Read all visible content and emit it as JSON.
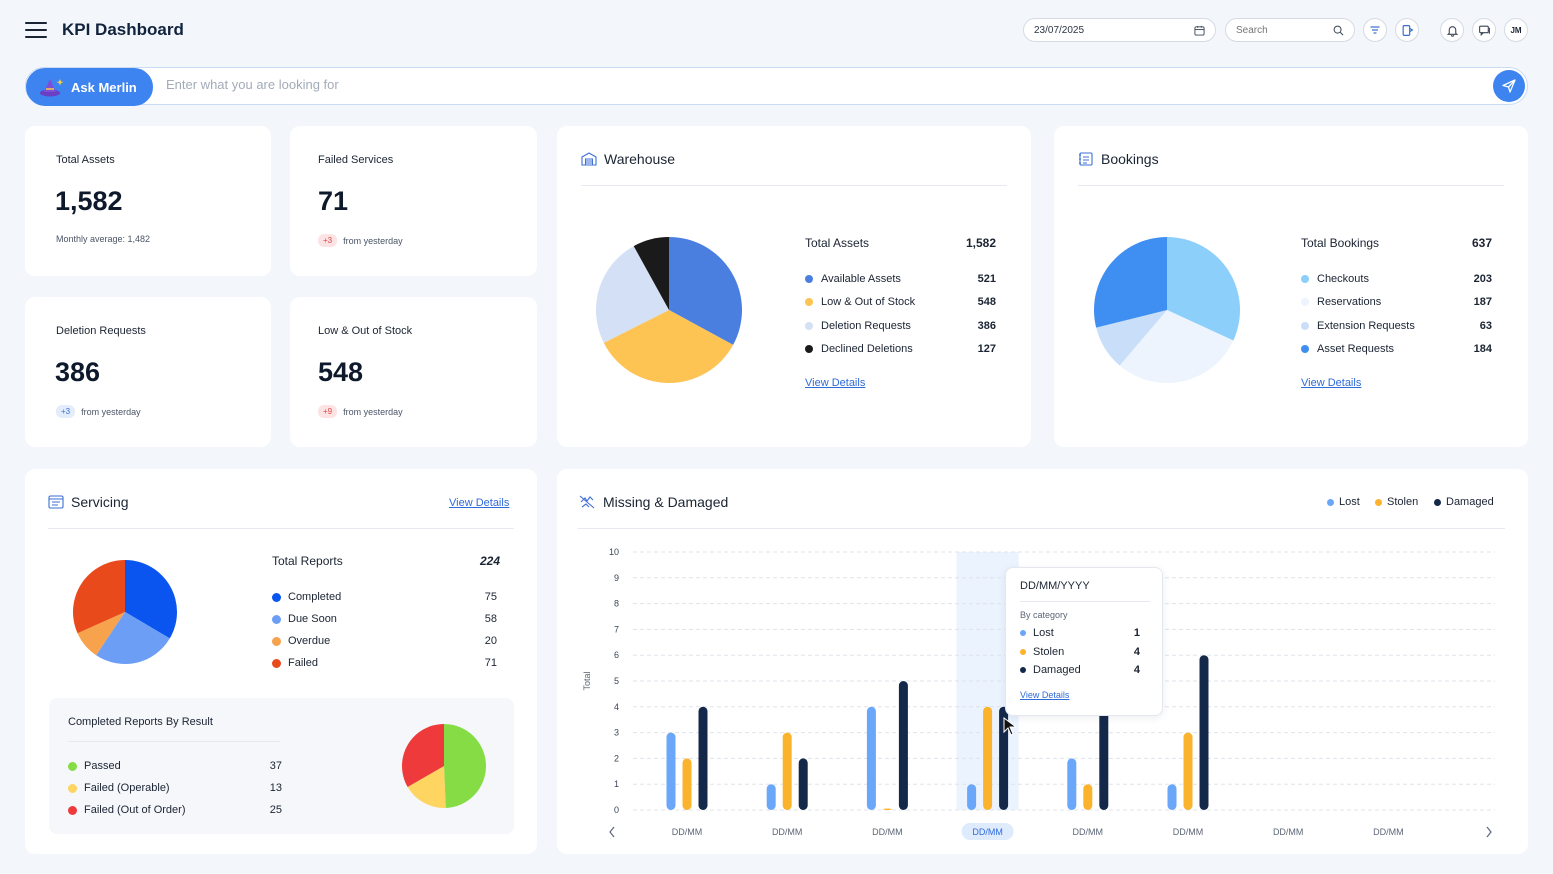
{
  "header": {
    "title": "KPI Dashboard",
    "date": "23/07/2025",
    "search_placeholder": "Search",
    "avatar_initials": "JM"
  },
  "ask": {
    "button_label": "Ask Merlin",
    "placeholder": "Enter what you are looking for"
  },
  "stats": [
    {
      "label": "Total Assets",
      "value": "1,582",
      "sub": "Monthly average: 1,482"
    },
    {
      "label": "Failed Services",
      "value": "71",
      "badge": "+3",
      "sub": "from yesterday",
      "badge_color": "#e04848"
    },
    {
      "label": "Deletion Requests",
      "value": "386",
      "badge": "+3",
      "sub": "from yesterday",
      "badge_color": "#3d6fd6"
    },
    {
      "label": "Low & Out of Stock",
      "value": "548",
      "badge": "+9",
      "sub": "from yesterday",
      "badge_color": "#e04848"
    }
  ],
  "warehouse": {
    "title": "Warehouse",
    "total_label": "Total Assets",
    "total_value": "1,582",
    "items": [
      {
        "label": "Available Assets",
        "value": 521,
        "color": "#4a7fe0"
      },
      {
        "label": "Low & Out of Stock",
        "value": 548,
        "color": "#fdc353"
      },
      {
        "label": "Deletion Requests",
        "value": 386,
        "color": "#d4e0f6"
      },
      {
        "label": "Declined Deletions",
        "value": 127,
        "color": "#1a1a1a"
      }
    ],
    "link": "View Details"
  },
  "bookings": {
    "title": "Bookings",
    "total_label": "Total Bookings",
    "total_value": "637",
    "items": [
      {
        "label": "Checkouts",
        "value": 203,
        "color": "#8ccffb"
      },
      {
        "label": "Reservations",
        "value": 187,
        "color": "#edf4fd"
      },
      {
        "label": "Extension Requests",
        "value": 63,
        "color": "#c9dff9"
      },
      {
        "label": "Asset Requests",
        "value": 184,
        "color": "#3f8ff2"
      }
    ],
    "link": "View Details"
  },
  "servicing": {
    "title": "Servicing",
    "link": "View Details",
    "total_label": "Total Reports",
    "total_value": "224",
    "items": [
      {
        "label": "Completed",
        "value": 75,
        "color": "#0a55f0"
      },
      {
        "label": "Due Soon",
        "value": 58,
        "color": "#6c9ef5"
      },
      {
        "label": "Overdue",
        "value": 20,
        "color": "#f7a24c"
      },
      {
        "label": "Failed",
        "value": 71,
        "color": "#e84a1c"
      }
    ],
    "results_title": "Completed Reports By Result",
    "results": [
      {
        "label": "Passed",
        "value": 37,
        "color": "#86dc45"
      },
      {
        "label": "Failed (Operable)",
        "value": 13,
        "color": "#fdd560"
      },
      {
        "label": "Failed (Out of Order)",
        "value": 25,
        "color": "#ee3a3a"
      }
    ]
  },
  "missing": {
    "title": "Missing & Damaged",
    "legend": [
      {
        "label": "Lost",
        "color": "#6aa7f8"
      },
      {
        "label": "Stolen",
        "color": "#fbb32e"
      },
      {
        "label": "Damaged",
        "color": "#14284a"
      }
    ],
    "tooltip": {
      "date": "DD/MM/YYYY",
      "subtitle": "By category",
      "rows": [
        {
          "label": "Lost",
          "value": "1",
          "color": "#6aa7f8"
        },
        {
          "label": "Stolen",
          "value": "4",
          "color": "#fbb32e"
        },
        {
          "label": "Damaged",
          "value": "4",
          "color": "#14284a"
        }
      ],
      "link": "View Details"
    }
  },
  "chart_data": {
    "type": "bar",
    "ylabel": "Total",
    "ylim": [
      0,
      10
    ],
    "yticks": [
      "0",
      "1",
      "2",
      "3",
      "4",
      "5",
      "6",
      "7",
      "8",
      "9",
      "10"
    ],
    "categories": [
      "DD/MM",
      "DD/MM",
      "DD/MM",
      "DD/MM",
      "DD/MM",
      "DD/MM",
      "DD/MM",
      "DD/MM"
    ],
    "highlighted_index": 3,
    "series": [
      {
        "name": "Lost",
        "values": [
          3,
          1,
          4,
          1,
          2,
          1,
          null,
          null
        ],
        "color": "#6aa7f8"
      },
      {
        "name": "Stolen",
        "values": [
          2,
          3,
          0,
          4,
          1,
          3,
          null,
          null
        ],
        "color": "#fbb32e"
      },
      {
        "name": "Damaged",
        "values": [
          4,
          2,
          5,
          4,
          5,
          6,
          null,
          null
        ],
        "color": "#14284a"
      }
    ]
  }
}
